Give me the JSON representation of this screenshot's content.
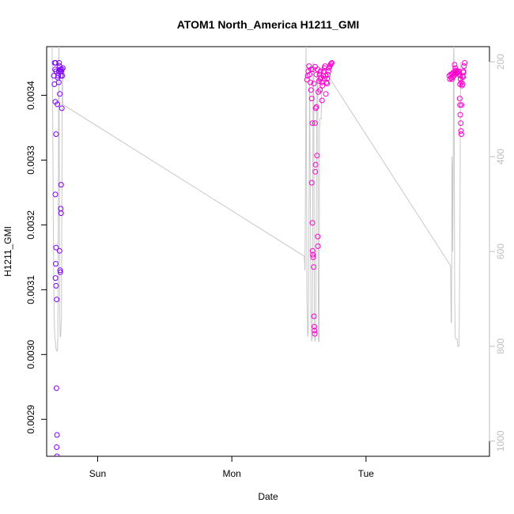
{
  "chart_data": {
    "type": "scatter",
    "title": "ATOM1 North_America H1211_GMI",
    "xlabel": "Date",
    "ylabel": "H1211_GMI",
    "x_ticks": [
      {
        "label": "Sun",
        "value": 1.0
      },
      {
        "label": "Mon",
        "value": 2.0
      },
      {
        "label": "Tue",
        "value": 3.0
      }
    ],
    "xlim": [
      0.62,
      3.92
    ],
    "y_ticks": [
      0.0029,
      0.003,
      0.0031,
      0.0032,
      0.0033,
      0.0034
    ],
    "y_tick_labels": [
      "0.0029",
      "0.0030",
      "0.0031",
      "0.0032",
      "0.0033",
      "0.0034"
    ],
    "ylim": [
      0.002843,
      0.003475
    ],
    "y2_ticks": [
      200,
      400,
      600,
      800,
      1000
    ],
    "y2_tick_labels": [
      "200",
      "400",
      "600",
      "800",
      "1000"
    ],
    "y2lim": [
      168,
      1032
    ],
    "y2_reversed": true,
    "grid": false,
    "colors": {
      "early": "#7a00ff",
      "late": "#ff00cc",
      "line": "#c8c8c8"
    },
    "points": [
      {
        "x": 0.68,
        "y": 0.00345
      },
      {
        "x": 0.683,
        "y": 0.00344
      },
      {
        "x": 0.686,
        "y": 0.00345
      },
      {
        "x": 0.69,
        "y": 0.003437
      },
      {
        "x": 0.673,
        "y": 0.00343
      },
      {
        "x": 0.678,
        "y": 0.003417
      },
      {
        "x": 0.685,
        "y": 0.00339
      },
      {
        "x": 0.69,
        "y": 0.00334
      },
      {
        "x": 0.685,
        "y": 0.003247
      },
      {
        "x": 0.69,
        "y": 0.003165
      },
      {
        "x": 0.688,
        "y": 0.00314
      },
      {
        "x": 0.686,
        "y": 0.003118
      },
      {
        "x": 0.69,
        "y": 0.003106
      },
      {
        "x": 0.695,
        "y": 0.003085
      },
      {
        "x": 0.693,
        "y": 0.002948
      },
      {
        "x": 0.697,
        "y": 0.002876
      },
      {
        "x": 0.695,
        "y": 0.002857
      },
      {
        "x": 0.697,
        "y": 0.002843
      },
      {
        "x": 0.7,
        "y": 0.003386
      },
      {
        "x": 0.703,
        "y": 0.003427
      },
      {
        "x": 0.706,
        "y": 0.00343
      },
      {
        "x": 0.71,
        "y": 0.003437
      },
      {
        "x": 0.713,
        "y": 0.00345
      },
      {
        "x": 0.716,
        "y": 0.003445
      },
      {
        "x": 0.72,
        "y": 0.003437
      },
      {
        "x": 0.723,
        "y": 0.00344
      },
      {
        "x": 0.727,
        "y": 0.00343
      },
      {
        "x": 0.73,
        "y": 0.003437
      },
      {
        "x": 0.733,
        "y": 0.00344
      },
      {
        "x": 0.737,
        "y": 0.00343
      },
      {
        "x": 0.716,
        "y": 0.00316
      },
      {
        "x": 0.72,
        "y": 0.00313
      },
      {
        "x": 0.722,
        "y": 0.003127
      },
      {
        "x": 0.725,
        "y": 0.003225
      },
      {
        "x": 0.727,
        "y": 0.003218
      },
      {
        "x": 0.728,
        "y": 0.003262
      },
      {
        "x": 0.733,
        "y": 0.00338
      },
      {
        "x": 0.718,
        "y": 0.003402
      },
      {
        "x": 0.71,
        "y": 0.00342
      },
      {
        "x": 0.74,
        "y": 0.003442
      },
      {
        "x": 2.56,
        "y": 0.003424
      },
      {
        "x": 2.565,
        "y": 0.00343
      },
      {
        "x": 2.57,
        "y": 0.003437
      },
      {
        "x": 2.575,
        "y": 0.003445
      },
      {
        "x": 2.58,
        "y": 0.003432
      },
      {
        "x": 2.585,
        "y": 0.00342
      },
      {
        "x": 2.59,
        "y": 0.003408
      },
      {
        "x": 2.595,
        "y": 0.003395
      },
      {
        "x": 2.6,
        "y": 0.003357
      },
      {
        "x": 2.595,
        "y": 0.003265
      },
      {
        "x": 2.6,
        "y": 0.003203
      },
      {
        "x": 2.602,
        "y": 0.00316
      },
      {
        "x": 2.604,
        "y": 0.003154
      },
      {
        "x": 2.606,
        "y": 0.00315
      },
      {
        "x": 2.61,
        "y": 0.003135
      },
      {
        "x": 2.612,
        "y": 0.003059
      },
      {
        "x": 2.614,
        "y": 0.003043
      },
      {
        "x": 2.616,
        "y": 0.003037
      },
      {
        "x": 2.618,
        "y": 0.003032
      },
      {
        "x": 2.62,
        "y": 0.003357
      },
      {
        "x": 2.622,
        "y": 0.003282
      },
      {
        "x": 2.624,
        "y": 0.003293
      },
      {
        "x": 2.625,
        "y": 0.00338
      },
      {
        "x": 2.63,
        "y": 0.003382
      },
      {
        "x": 2.635,
        "y": 0.003307
      },
      {
        "x": 2.64,
        "y": 0.003182
      },
      {
        "x": 2.642,
        "y": 0.003167
      },
      {
        "x": 2.645,
        "y": 0.003405
      },
      {
        "x": 2.65,
        "y": 0.003422
      },
      {
        "x": 2.655,
        "y": 0.003432
      },
      {
        "x": 2.66,
        "y": 0.003437
      },
      {
        "x": 2.665,
        "y": 0.003427
      },
      {
        "x": 2.67,
        "y": 0.00342
      },
      {
        "x": 2.675,
        "y": 0.003415
      },
      {
        "x": 2.68,
        "y": 0.00343
      },
      {
        "x": 2.685,
        "y": 0.003437
      },
      {
        "x": 2.69,
        "y": 0.003442
      },
      {
        "x": 2.695,
        "y": 0.003445
      },
      {
        "x": 2.7,
        "y": 0.00343
      },
      {
        "x": 2.705,
        "y": 0.00342
      },
      {
        "x": 2.71,
        "y": 0.003426
      },
      {
        "x": 2.715,
        "y": 0.003432
      },
      {
        "x": 2.72,
        "y": 0.003437
      },
      {
        "x": 2.725,
        "y": 0.003442
      },
      {
        "x": 2.73,
        "y": 0.003445
      },
      {
        "x": 2.735,
        "y": 0.003447
      },
      {
        "x": 2.74,
        "y": 0.003449
      },
      {
        "x": 2.745,
        "y": 0.00345
      },
      {
        "x": 2.612,
        "y": 0.003418
      },
      {
        "x": 2.63,
        "y": 0.003432
      },
      {
        "x": 2.658,
        "y": 0.003408
      },
      {
        "x": 2.672,
        "y": 0.003392
      },
      {
        "x": 2.59,
        "y": 0.00344
      },
      {
        "x": 2.605,
        "y": 0.00344
      },
      {
        "x": 2.62,
        "y": 0.003444
      },
      {
        "x": 2.64,
        "y": 0.00344
      },
      {
        "x": 2.66,
        "y": 0.003425
      },
      {
        "x": 2.69,
        "y": 0.003426
      },
      {
        "x": 2.71,
        "y": 0.003418
      },
      {
        "x": 2.7,
        "y": 0.003402
      },
      {
        "x": 3.62,
        "y": 0.00343
      },
      {
        "x": 3.625,
        "y": 0.003425
      },
      {
        "x": 3.63,
        "y": 0.003432
      },
      {
        "x": 3.635,
        "y": 0.003427
      },
      {
        "x": 3.64,
        "y": 0.003433
      },
      {
        "x": 3.645,
        "y": 0.003428
      },
      {
        "x": 3.65,
        "y": 0.003435
      },
      {
        "x": 3.655,
        "y": 0.00343
      },
      {
        "x": 3.66,
        "y": 0.003437
      },
      {
        "x": 3.665,
        "y": 0.003433
      },
      {
        "x": 3.67,
        "y": 0.003438
      },
      {
        "x": 3.675,
        "y": 0.003434
      },
      {
        "x": 3.68,
        "y": 0.003437
      },
      {
        "x": 3.685,
        "y": 0.003435
      },
      {
        "x": 3.69,
        "y": 0.003437
      },
      {
        "x": 3.695,
        "y": 0.003433
      },
      {
        "x": 3.7,
        "y": 0.00343
      },
      {
        "x": 3.705,
        "y": 0.003425
      },
      {
        "x": 3.71,
        "y": 0.00342
      },
      {
        "x": 3.715,
        "y": 0.003415
      },
      {
        "x": 3.72,
        "y": 0.00343
      },
      {
        "x": 3.725,
        "y": 0.003437
      },
      {
        "x": 3.73,
        "y": 0.003445
      },
      {
        "x": 3.735,
        "y": 0.00345
      },
      {
        "x": 3.66,
        "y": 0.003447
      },
      {
        "x": 3.665,
        "y": 0.003442
      },
      {
        "x": 3.64,
        "y": 0.003425
      },
      {
        "x": 3.7,
        "y": 0.003417
      },
      {
        "x": 3.698,
        "y": 0.003395
      },
      {
        "x": 3.7,
        "y": 0.003385
      },
      {
        "x": 3.702,
        "y": 0.00337
      },
      {
        "x": 3.706,
        "y": 0.003357
      },
      {
        "x": 3.708,
        "y": 0.003345
      },
      {
        "x": 3.71,
        "y": 0.00334
      },
      {
        "x": 3.712,
        "y": 0.003385
      },
      {
        "x": 3.72,
        "y": 0.003417
      },
      {
        "x": 3.723,
        "y": 0.003428
      },
      {
        "x": 3.727,
        "y": 0.003435
      }
    ],
    "line": [
      {
        "x": 0.66,
        "y2": 160
      },
      {
        "x": 0.665,
        "y2": 300
      },
      {
        "x": 0.67,
        "y2": 560
      },
      {
        "x": 0.675,
        "y2": 720
      },
      {
        "x": 0.68,
        "y2": 780
      },
      {
        "x": 0.685,
        "y2": 790
      },
      {
        "x": 0.69,
        "y2": 805
      },
      {
        "x": 0.695,
        "y2": 810
      },
      {
        "x": 0.7,
        "y2": 810
      },
      {
        "x": 0.703,
        "y2": 780
      },
      {
        "x": 0.706,
        "y2": 600
      },
      {
        "x": 0.71,
        "y2": 200
      },
      {
        "x": 0.712,
        "y2": 160
      },
      {
        "x": 0.714,
        "y2": 400
      },
      {
        "x": 0.716,
        "y2": 700
      },
      {
        "x": 0.72,
        "y2": 780
      },
      {
        "x": 0.724,
        "y2": 780
      },
      {
        "x": 0.727,
        "y2": 760
      },
      {
        "x": 0.73,
        "y2": 740
      },
      {
        "x": 0.733,
        "y2": 500
      },
      {
        "x": 0.736,
        "y2": 230
      },
      {
        "x": 0.738,
        "y2": 210
      },
      {
        "x": 0.74,
        "y2": 290
      },
      {
        "x": 2.54,
        "y2": 610
      },
      {
        "x": 2.545,
        "y2": 640
      },
      {
        "x": 2.55,
        "y2": 400
      },
      {
        "x": 2.553,
        "y2": 160
      },
      {
        "x": 2.556,
        "y2": 350
      },
      {
        "x": 2.56,
        "y2": 700
      },
      {
        "x": 2.565,
        "y2": 780
      },
      {
        "x": 2.57,
        "y2": 770
      },
      {
        "x": 2.575,
        "y2": 500
      },
      {
        "x": 2.58,
        "y2": 230
      },
      {
        "x": 2.585,
        "y2": 500
      },
      {
        "x": 2.59,
        "y2": 760
      },
      {
        "x": 2.595,
        "y2": 790
      },
      {
        "x": 2.6,
        "y2": 780
      },
      {
        "x": 2.603,
        "y2": 500
      },
      {
        "x": 2.606,
        "y2": 200
      },
      {
        "x": 2.61,
        "y2": 220
      },
      {
        "x": 2.613,
        "y2": 500
      },
      {
        "x": 2.616,
        "y2": 780
      },
      {
        "x": 2.62,
        "y2": 790
      },
      {
        "x": 2.625,
        "y2": 780
      },
      {
        "x": 2.63,
        "y2": 500
      },
      {
        "x": 2.635,
        "y2": 220
      },
      {
        "x": 2.64,
        "y2": 240
      },
      {
        "x": 2.643,
        "y2": 600
      },
      {
        "x": 2.646,
        "y2": 790
      },
      {
        "x": 2.65,
        "y2": 790
      },
      {
        "x": 2.653,
        "y2": 350
      },
      {
        "x": 2.656,
        "y2": 320
      },
      {
        "x": 2.66,
        "y2": 320
      },
      {
        "x": 2.663,
        "y2": 320
      },
      {
        "x": 2.666,
        "y2": 320
      },
      {
        "x": 2.67,
        "y2": 230
      },
      {
        "x": 2.673,
        "y2": 210
      },
      {
        "x": 3.63,
        "y2": 630
      },
      {
        "x": 3.634,
        "y2": 750
      },
      {
        "x": 3.637,
        "y2": 750
      },
      {
        "x": 3.64,
        "y2": 400
      },
      {
        "x": 3.643,
        "y2": 420
      },
      {
        "x": 3.646,
        "y2": 600
      },
      {
        "x": 3.65,
        "y2": 400
      },
      {
        "x": 3.652,
        "y2": 200
      },
      {
        "x": 3.655,
        "y2": 160
      },
      {
        "x": 3.658,
        "y2": 400
      },
      {
        "x": 3.661,
        "y2": 700
      },
      {
        "x": 3.665,
        "y2": 780
      },
      {
        "x": 3.67,
        "y2": 785
      },
      {
        "x": 3.675,
        "y2": 785
      },
      {
        "x": 3.68,
        "y2": 785
      },
      {
        "x": 3.683,
        "y2": 800
      },
      {
        "x": 3.686,
        "y2": 800
      },
      {
        "x": 3.69,
        "y2": 800
      },
      {
        "x": 3.693,
        "y2": 800
      },
      {
        "x": 3.696,
        "y2": 700
      },
      {
        "x": 3.7,
        "y2": 540
      },
      {
        "x": 3.703,
        "y2": 300
      },
      {
        "x": 3.706,
        "y2": 200
      }
    ]
  }
}
